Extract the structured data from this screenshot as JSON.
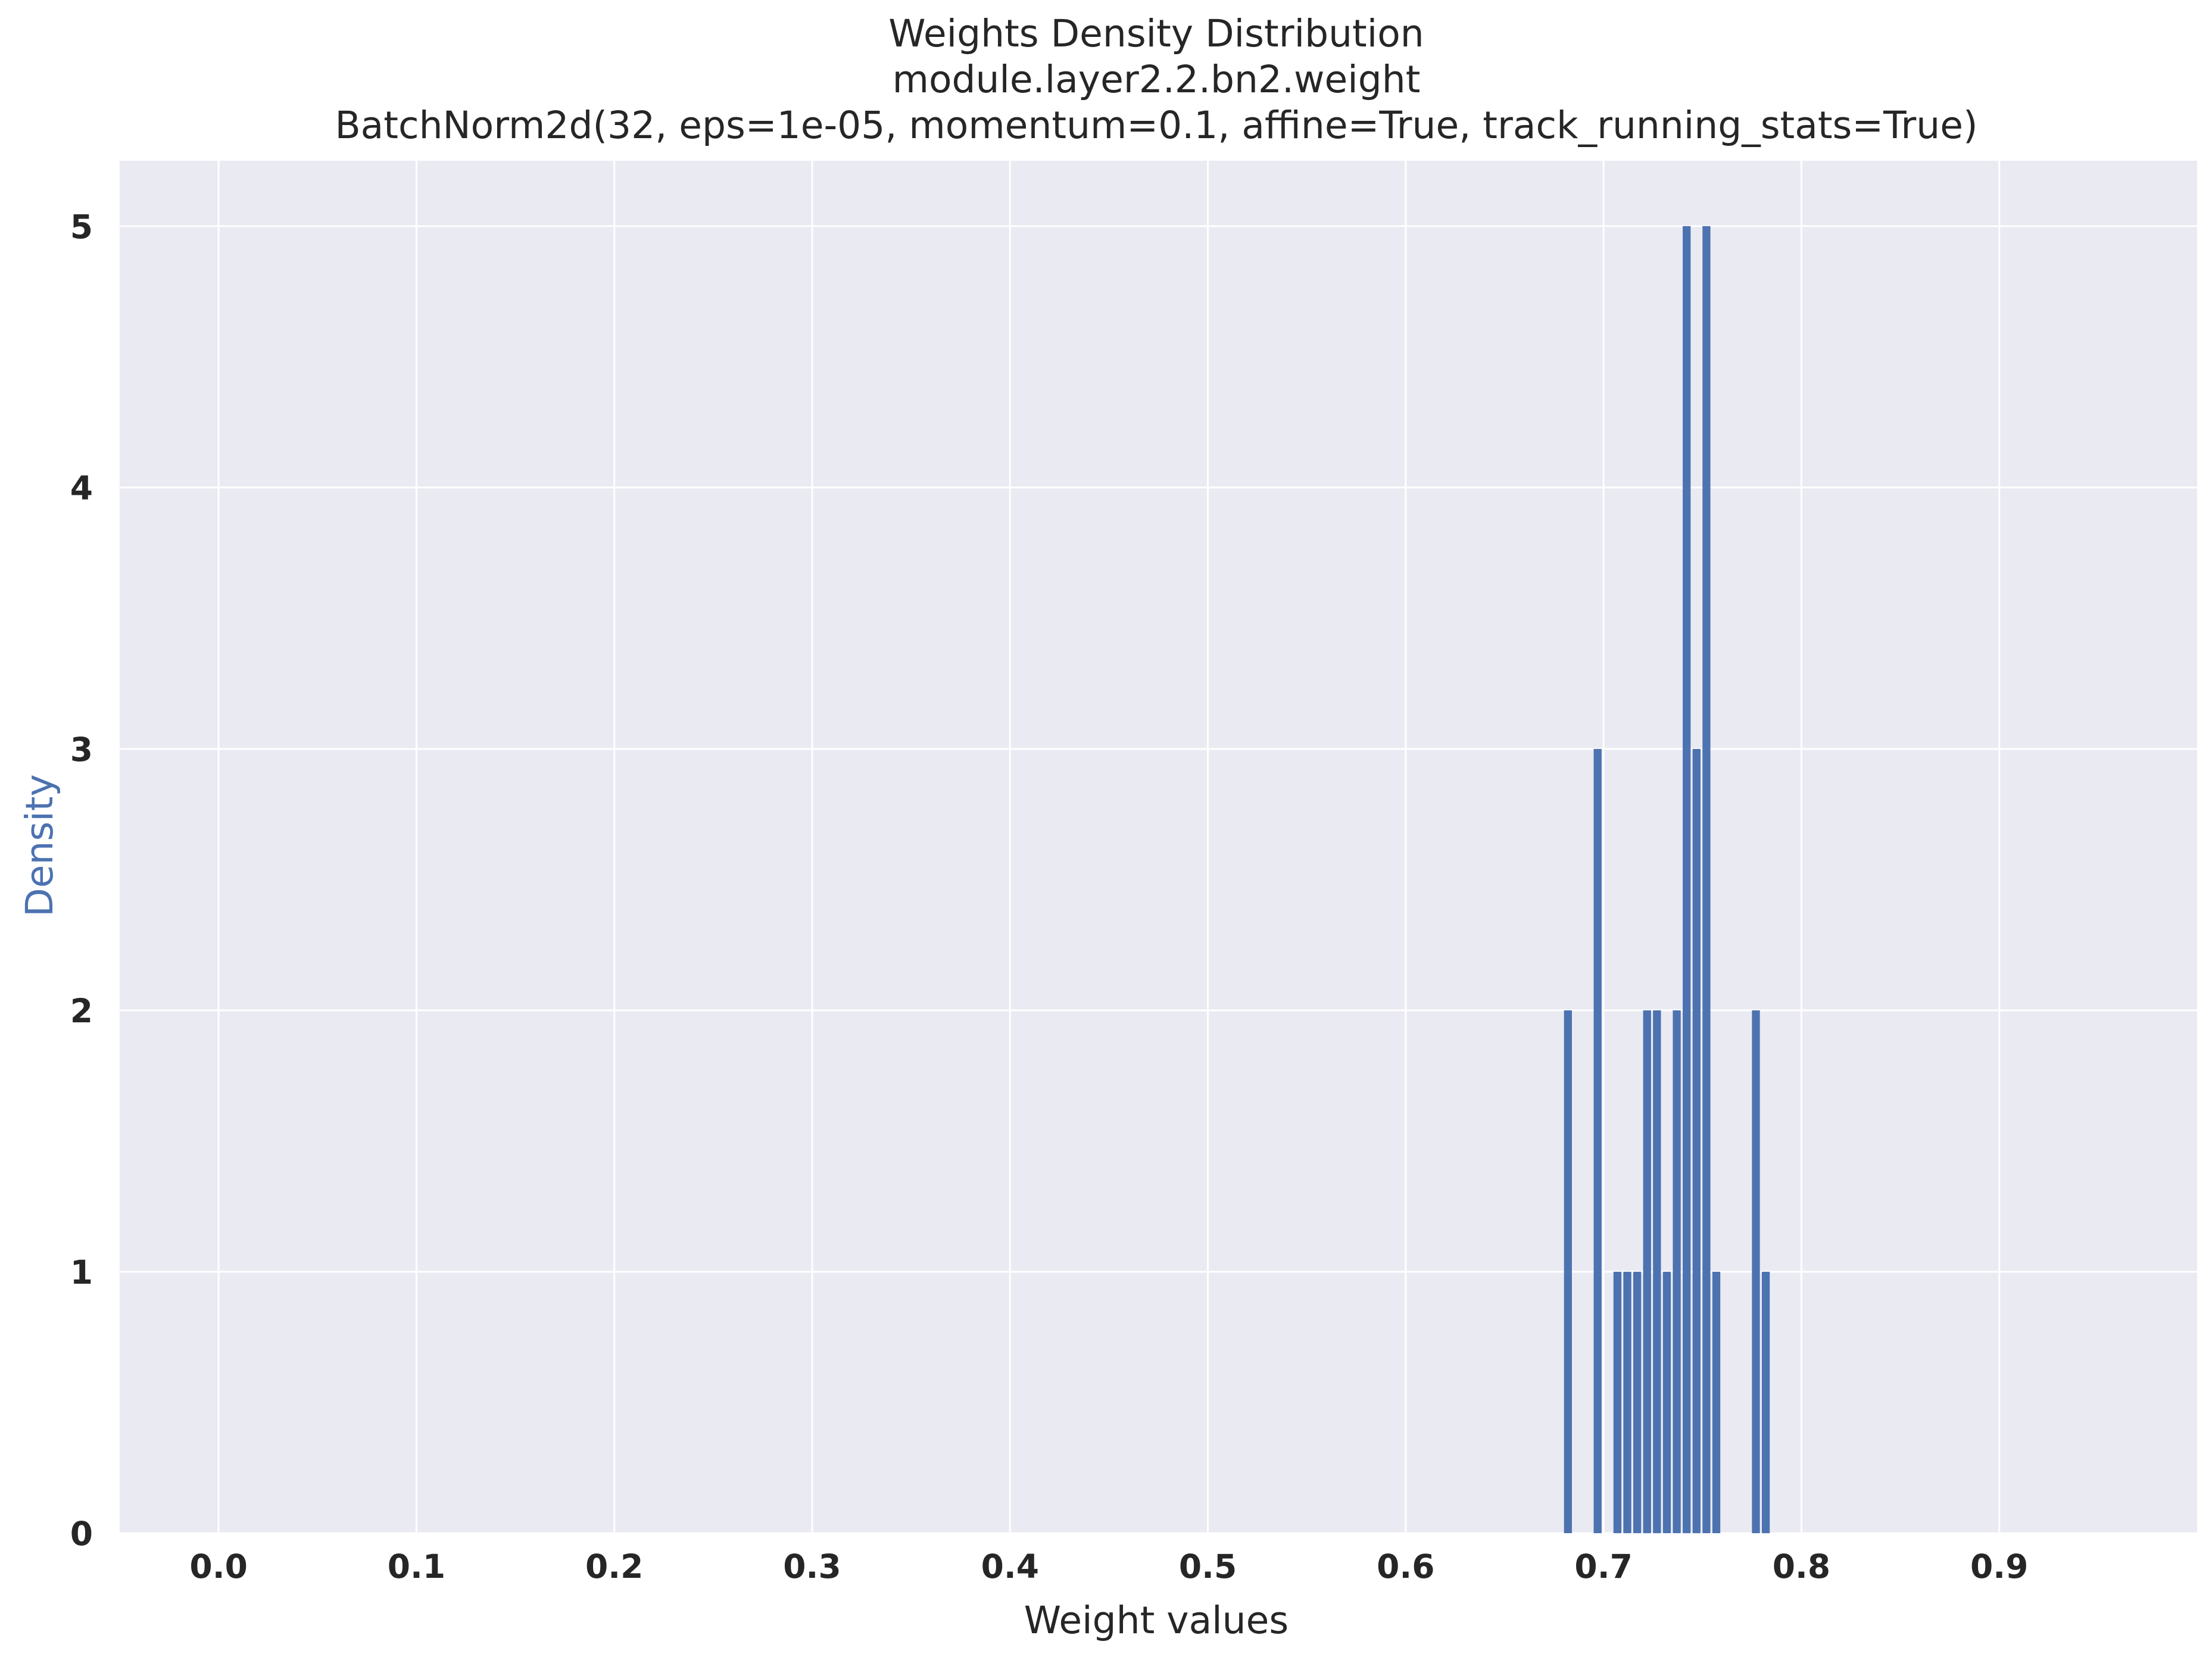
{
  "chart_data": {
    "type": "bar",
    "title_lines": [
      "Weights Density Distribution",
      "module.layer2.2.bn2.weight",
      "BatchNorm2d(32, eps=1e-05, momentum=0.1, affine=True, track_running_stats=True)"
    ],
    "xlabel": "Weight values",
    "ylabel": "Density",
    "xlim": [
      -0.05,
      1.0
    ],
    "ylim": [
      0,
      5.25
    ],
    "xticks": [
      "0.0",
      "0.1",
      "0.2",
      "0.3",
      "0.4",
      "0.5",
      "0.6",
      "0.7",
      "0.8",
      "0.9"
    ],
    "xtick_values": [
      0.0,
      0.1,
      0.2,
      0.3,
      0.4,
      0.5,
      0.6,
      0.7,
      0.8,
      0.9
    ],
    "yticks": [
      "0",
      "1",
      "2",
      "3",
      "4",
      "5"
    ],
    "ytick_values": [
      0,
      1,
      2,
      3,
      4,
      5
    ],
    "grid": true,
    "bar_width": 0.004,
    "bars": [
      {
        "x": 0.682,
        "value": 2
      },
      {
        "x": 0.697,
        "value": 3
      },
      {
        "x": 0.707,
        "value": 1
      },
      {
        "x": 0.712,
        "value": 1
      },
      {
        "x": 0.717,
        "value": 1
      },
      {
        "x": 0.722,
        "value": 2
      },
      {
        "x": 0.727,
        "value": 2
      },
      {
        "x": 0.732,
        "value": 1
      },
      {
        "x": 0.737,
        "value": 2
      },
      {
        "x": 0.742,
        "value": 5
      },
      {
        "x": 0.747,
        "value": 3
      },
      {
        "x": 0.752,
        "value": 5
      },
      {
        "x": 0.757,
        "value": 1
      },
      {
        "x": 0.777,
        "value": 2
      },
      {
        "x": 0.782,
        "value": 1
      }
    ],
    "colors": {
      "bar": "#4c72b0",
      "plot_background": "#eaeaf2",
      "grid": "#ffffff",
      "ylabel": "#4c72b0",
      "text": "#262626"
    }
  }
}
